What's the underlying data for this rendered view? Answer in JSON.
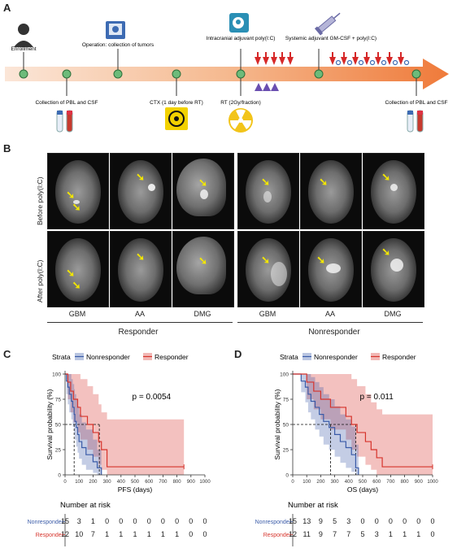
{
  "panels": {
    "a": "A",
    "b": "B",
    "c": "C",
    "d": "D"
  },
  "timeline": {
    "top_labels": [
      "Enrollment",
      "Operation: collection of tumors",
      "Intracranial adjuvant poly(I:C)",
      "Systemic adjuvant GM-CSF + poly(I:C)"
    ],
    "bottom_labels": [
      "Collection of PBL and CSF",
      "CTX (1 day before RT)",
      "RT (2Gy/fraction)",
      "Collection of PBL and CSF"
    ]
  },
  "mri": {
    "row_labels": [
      "Before poly(I:C)",
      "After poly(I:C)"
    ],
    "col_labels": [
      "GBM",
      "AA",
      "DMG",
      "GBM",
      "AA",
      "DMG"
    ],
    "group_labels": [
      "Responder",
      "Nonresponder"
    ]
  },
  "chart_data": [
    {
      "type": "line",
      "panel": "C",
      "legend_title": "Strata",
      "legend": [
        "Nonresponder",
        "Responder"
      ],
      "xlabel": "PFS (days)",
      "ylabel": "Survival probability (%)",
      "xlim": [
        0,
        1000
      ],
      "ylim": [
        0,
        100
      ],
      "xticks": [
        0,
        100,
        200,
        300,
        400,
        500,
        600,
        700,
        800,
        900,
        1000
      ],
      "yticks": [
        0,
        25,
        50,
        75,
        100
      ],
      "p_value": "p = 0.0054",
      "colors": {
        "Nonresponder": "#3a5ba8",
        "Responder": "#d6332b"
      },
      "series": [
        {
          "name": "Nonresponder",
          "x": [
            0,
            10,
            20,
            30,
            45,
            55,
            65,
            70,
            80,
            90,
            100,
            120,
            150,
            200,
            230,
            260
          ],
          "y": [
            100,
            93,
            87,
            80,
            73,
            67,
            60,
            53,
            47,
            40,
            33,
            27,
            20,
            13,
            7,
            0
          ],
          "upper": [
            100,
            100,
            100,
            100,
            95,
            90,
            85,
            80,
            75,
            68,
            60,
            52,
            45,
            35,
            25,
            10
          ],
          "lower": [
            100,
            80,
            70,
            62,
            55,
            48,
            40,
            35,
            28,
            22,
            16,
            10,
            5,
            2,
            0,
            0
          ]
        },
        {
          "name": "Responder",
          "x": [
            0,
            20,
            40,
            60,
            90,
            110,
            160,
            200,
            240,
            260,
            300,
            850
          ],
          "y": [
            100,
            92,
            83,
            75,
            67,
            58,
            50,
            42,
            33,
            25,
            8,
            8
          ],
          "upper": [
            100,
            100,
            100,
            100,
            100,
            95,
            88,
            80,
            70,
            62,
            55,
            55
          ],
          "lower": [
            100,
            75,
            62,
            52,
            42,
            35,
            25,
            18,
            10,
            5,
            0,
            0
          ]
        }
      ],
      "median_lines": [
        65,
        245
      ],
      "risk_table": {
        "title": "Number at risk",
        "x": [
          0,
          100,
          200,
          300,
          400,
          500,
          600,
          700,
          800,
          900,
          1000
        ],
        "rows": [
          {
            "name": "Nonresponder",
            "values": [
              "15",
              "3",
              "1",
              "0",
              "0",
              "0",
              "0",
              "0",
              "0",
              "0",
              "0"
            ]
          },
          {
            "name": "Responder",
            "values": [
              "12",
              "10",
              "7",
              "1",
              "1",
              "1",
              "1",
              "1",
              "1",
              "0",
              "0"
            ]
          }
        ]
      }
    },
    {
      "type": "line",
      "panel": "D",
      "legend_title": "Strata",
      "legend": [
        "Nonresponder",
        "Responder"
      ],
      "xlabel": "OS (days)",
      "ylabel": "Survival probability (%)",
      "xlim": [
        0,
        1000
      ],
      "ylim": [
        0,
        100
      ],
      "xticks": [
        0,
        100,
        200,
        300,
        400,
        500,
        600,
        700,
        800,
        900,
        1000
      ],
      "yticks": [
        0,
        25,
        50,
        75,
        100
      ],
      "p_value": "p = 0.011",
      "colors": {
        "Nonresponder": "#3a5ba8",
        "Responder": "#d6332b"
      },
      "series": [
        {
          "name": "Nonresponder",
          "x": [
            0,
            60,
            90,
            110,
            130,
            160,
            190,
            220,
            260,
            300,
            340,
            380,
            420,
            450,
            470
          ],
          "y": [
            100,
            93,
            87,
            80,
            73,
            67,
            60,
            53,
            47,
            40,
            33,
            27,
            20,
            7,
            0
          ],
          "upper": [
            100,
            100,
            100,
            100,
            97,
            92,
            87,
            80,
            75,
            68,
            60,
            55,
            48,
            30,
            15
          ],
          "lower": [
            100,
            82,
            72,
            62,
            55,
            45,
            38,
            30,
            25,
            18,
            12,
            7,
            3,
            0,
            0
          ]
        },
        {
          "name": "Responder",
          "x": [
            0,
            100,
            150,
            200,
            270,
            380,
            420,
            460,
            520,
            560,
            600,
            640,
            1000
          ],
          "y": [
            100,
            92,
            83,
            75,
            67,
            58,
            50,
            42,
            33,
            25,
            17,
            8,
            8
          ],
          "upper": [
            100,
            100,
            100,
            100,
            100,
            100,
            95,
            88,
            80,
            72,
            65,
            60,
            60
          ],
          "lower": [
            100,
            75,
            65,
            55,
            45,
            35,
            25,
            18,
            10,
            5,
            0,
            0,
            0
          ]
        }
      ],
      "median_lines": [
        270,
        450
      ],
      "risk_table": {
        "title": "Number at risk",
        "x": [
          0,
          100,
          200,
          300,
          400,
          500,
          600,
          700,
          800,
          900,
          1000
        ],
        "rows": [
          {
            "name": "Nonresponder",
            "values": [
              "15",
              "13",
              "9",
              "5",
              "3",
              "0",
              "0",
              "0",
              "0",
              "0",
              "0"
            ]
          },
          {
            "name": "Responder",
            "values": [
              "12",
              "11",
              "9",
              "7",
              "7",
              "5",
              "3",
              "1",
              "1",
              "1",
              "0"
            ]
          }
        ]
      }
    }
  ]
}
